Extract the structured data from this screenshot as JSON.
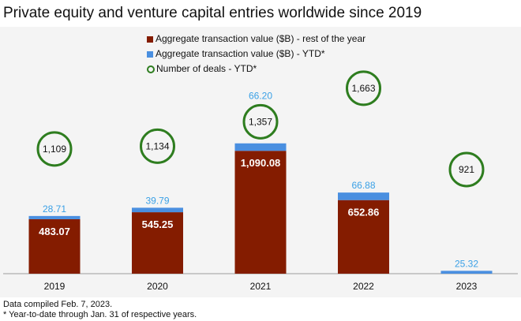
{
  "title": "Private equity and venture capital entries worldwide since 2019",
  "chart_data": {
    "type": "bar",
    "stacked": true,
    "categories": [
      "2019",
      "2020",
      "2021",
      "2022",
      "2023"
    ],
    "series": [
      {
        "name": "Aggregate transaction value ($B) - rest of the year",
        "values": [
          483.07,
          545.25,
          1090.08,
          652.86,
          0
        ],
        "labels": [
          "483.07",
          "545.25",
          "1,090.08",
          "652.86",
          ""
        ],
        "color": "#841c00"
      },
      {
        "name": "Aggregate transaction value ($B) - YTD*",
        "values": [
          28.71,
          39.79,
          66.2,
          66.88,
          25.32
        ],
        "labels": [
          "28.71",
          "39.79",
          "66.20",
          "66.88",
          "25.32"
        ],
        "color": "#4a8fe0"
      },
      {
        "name": "Number of deals - YTD*",
        "type": "scatter",
        "axis": "secondary",
        "values": [
          1109,
          1134,
          1357,
          1663,
          921
        ],
        "labels": [
          "1,109",
          "1,134",
          "1,357",
          "1,663",
          "921"
        ],
        "color": "#2e7d1f"
      }
    ],
    "legend_position": "top-center",
    "grid": false
  },
  "footnotes": [
    "Data compiled Feb. 7, 2023.",
    "* Year-to-date through Jan. 31 of respective years."
  ]
}
